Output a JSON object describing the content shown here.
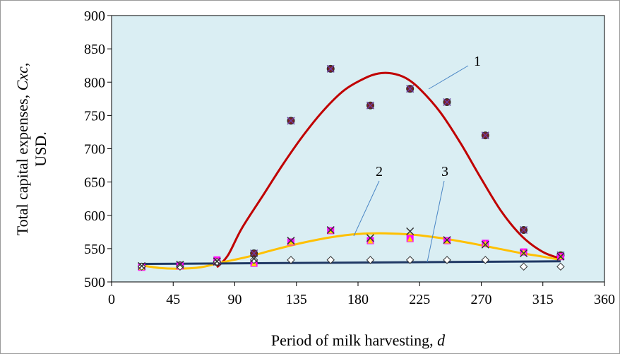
{
  "chart_data": {
    "type": "scatter",
    "title": "",
    "xlabel": {
      "main": "Period of milk harvesting, ",
      "var": "d"
    },
    "ylabel": {
      "line1_main": "Total capital expenses, ",
      "line1_var": "Cxc",
      "line1_end": ",",
      "line2": "USD."
    },
    "xlim": [
      0,
      360
    ],
    "ylim": [
      500,
      900
    ],
    "xticks": [
      0,
      45,
      90,
      135,
      180,
      225,
      270,
      315,
      360
    ],
    "yticks": [
      500,
      550,
      600,
      650,
      700,
      750,
      800,
      850,
      900
    ],
    "grid": false,
    "plot_background": "#daeef3",
    "curve_labels": [
      "1",
      "2",
      "3"
    ],
    "series": [
      {
        "label": "1",
        "color": "#c00000",
        "points_x": [
          22,
          50,
          77,
          104,
          131,
          160,
          189,
          218,
          245,
          273,
          301,
          328
        ],
        "points_y": [
          523,
          525,
          530,
          543,
          742,
          820,
          765,
          790,
          770,
          720,
          578,
          540
        ],
        "curve_x": [
          77,
          85,
          95,
          110,
          125,
          140,
          155,
          170,
          185,
          195,
          205,
          215,
          225,
          240,
          255,
          270,
          285,
          300,
          315,
          328
        ],
        "curve_y": [
          522,
          540,
          580,
          628,
          676,
          720,
          758,
          788,
          806,
          813,
          813,
          806,
          790,
          755,
          708,
          655,
          605,
          568,
          545,
          535
        ]
      },
      {
        "label": "2",
        "color": "#ffc000",
        "points_x": [
          22,
          50,
          77,
          104,
          131,
          160,
          189,
          218,
          245,
          273,
          301,
          328
        ],
        "points_y": [
          522,
          524,
          533,
          528,
          560,
          577,
          562,
          565,
          562,
          558,
          545,
          538
        ],
        "curve_x": [
          22,
          35,
          50,
          65,
          80,
          100,
          120,
          140,
          160,
          180,
          200,
          220,
          240,
          260,
          280,
          300,
          315,
          328
        ],
        "curve_y": [
          525,
          521,
          520,
          522,
          529,
          538,
          549,
          559,
          567,
          572,
          573,
          571,
          566,
          559,
          551,
          543,
          538,
          533
        ]
      },
      {
        "label": "3",
        "color": "#1f3864",
        "points_x": [
          22,
          50,
          77,
          104,
          131,
          160,
          189,
          218,
          245,
          273,
          301,
          328
        ],
        "points_y": [
          523,
          523,
          530,
          533,
          533,
          533,
          533,
          533,
          533,
          533,
          523,
          523
        ],
        "curve_x": [
          22,
          328
        ],
        "curve_y": [
          527,
          531
        ]
      }
    ],
    "extra_markers_x": [
      22,
      50,
      77,
      104,
      131,
      160,
      189,
      218,
      245,
      273,
      301,
      328
    ],
    "extra_markers_y": [
      524,
      526,
      531,
      535,
      562,
      578,
      566,
      576,
      563,
      556,
      543,
      538
    ]
  }
}
